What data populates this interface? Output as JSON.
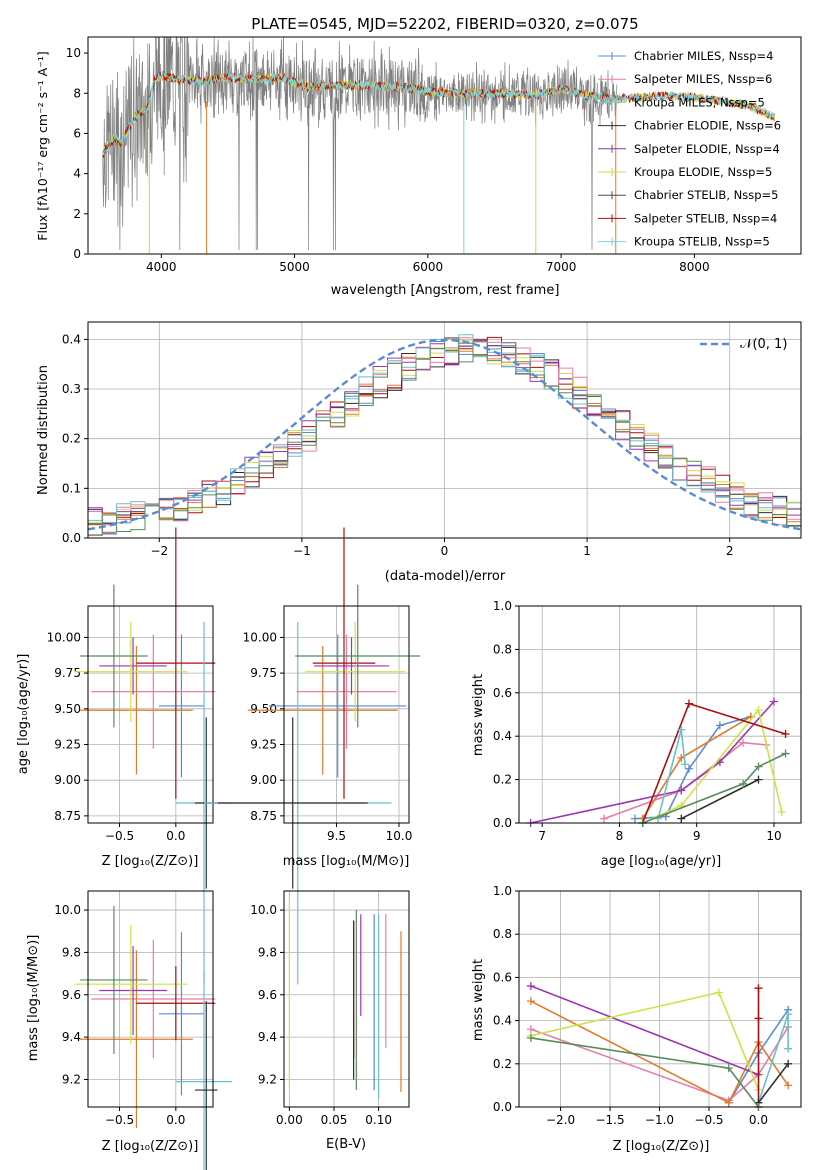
{
  "figure": {
    "title": "PLATE=0545, MJD=52202, FIBERID=0320, z=0.075"
  },
  "colors": {
    "model_line": "#808080",
    "series": [
      "#5b8bd0",
      "#e77ea8",
      "#8fc1c8",
      "#2f2f2f",
      "#7a3fa0",
      "#c8dc3a",
      "#4a4a4a",
      "#a80f0f",
      "#7bd3e6"
    ],
    "hist": [
      "#5b8bd0",
      "#e07b29",
      "#a80f0f",
      "#2e2e2e",
      "#9c36b5",
      "#cfe247",
      "#e77ea8",
      "#6bbfcf",
      "#5b8a5e"
    ]
  },
  "chart_data": [
    {
      "id": "spectrum",
      "type": "line",
      "xlabel": "wavelength [Angstrom, rest frame]",
      "ylabel": "Flux [fλ10⁻¹⁷ erg cm⁻² s⁻¹ A⁻¹]",
      "xlim": [
        3450,
        8800
      ],
      "ylim": [
        0,
        10.8
      ],
      "xticks": [
        4000,
        5000,
        6000,
        7000,
        8000
      ],
      "yticks": [
        0,
        2,
        4,
        6,
        8,
        10
      ],
      "continuum": [
        [
          3560,
          5.0
        ],
        [
          3650,
          5.8
        ],
        [
          3700,
          5.5
        ],
        [
          3800,
          6.8
        ],
        [
          3900,
          7.3
        ],
        [
          3950,
          8.7
        ],
        [
          4000,
          8.9
        ],
        [
          4100,
          8.7
        ],
        [
          4300,
          8.6
        ],
        [
          4500,
          8.8
        ],
        [
          4700,
          8.7
        ],
        [
          4900,
          8.8
        ],
        [
          5100,
          8.3
        ],
        [
          5300,
          8.4
        ],
        [
          5500,
          8.4
        ],
        [
          5800,
          8.3
        ],
        [
          6000,
          8.1
        ],
        [
          6200,
          8.0
        ],
        [
          6400,
          8.0
        ],
        [
          6600,
          8.0
        ],
        [
          6800,
          7.9
        ],
        [
          7000,
          8.2
        ],
        [
          7200,
          7.9
        ],
        [
          7400,
          7.7
        ],
        [
          7600,
          7.8
        ],
        [
          7800,
          7.9
        ],
        [
          8000,
          7.8
        ],
        [
          8200,
          7.6
        ],
        [
          8400,
          7.4
        ],
        [
          8600,
          6.8
        ]
      ],
      "legend": [
        "Chabrier MILES, N_SSP=4",
        "Salpeter MILES, N_SSP=6",
        "Kroupa MILES, N_SSP=5",
        "Chabrier ELODIE, N_SSP=6",
        "Salpeter ELODIE, N_SSP=4",
        "Kroupa ELODIE, N_SSP=5",
        "Chabrier STELIB, N_SSP=5",
        "Salpeter STELIB, N_SSP=4",
        "Kroupa STELIB, N_SSP=5"
      ]
    },
    {
      "id": "residuals",
      "type": "histogram",
      "xlabel": "(data-model)/error",
      "ylabel": "Normed distribution",
      "xlim": [
        -2.5,
        2.5
      ],
      "ylim": [
        0,
        0.435
      ],
      "xticks": [
        -2,
        -1,
        0,
        1,
        2
      ],
      "yticks": [
        0.0,
        0.1,
        0.2,
        0.3,
        0.4
      ],
      "bin_width": 0.1,
      "legend": "𝒩(0, 1)"
    }
  ],
  "panels": {
    "age_Z": {
      "xlabel": "Z [log₁₀(Z/Z⊙)]",
      "ylabel": "age  [log₁₀(age/yr)]",
      "xticks": [
        "-0.5",
        "0.0"
      ],
      "yticks": [
        "8.75",
        "9.00",
        "9.25",
        "9.50",
        "9.75",
        "10.00"
      ]
    },
    "age_mass": {
      "xlabel": "mass [log₁₀(M/M⊙)]",
      "xticks": [
        "9.5",
        "10.0"
      ],
      "yticks": [
        "8.75",
        "9.00",
        "9.25",
        "9.50",
        "9.75",
        "10.00"
      ]
    },
    "weight_age": {
      "xlabel": "age  [log₁₀(age/yr)]",
      "ylabel": "mass weight",
      "xticks": [
        "7",
        "8",
        "9",
        "10"
      ],
      "yticks": [
        "0.0",
        "0.2",
        "0.4",
        "0.6",
        "0.8",
        "1.0"
      ]
    },
    "mass_Z": {
      "xlabel": "Z [log₁₀(Z/Z⊙)]",
      "ylabel": "mass [log₁₀(M/M⊙)]",
      "xticks": [
        "-0.5",
        "0.0"
      ],
      "yticks": [
        "9.2",
        "9.4",
        "9.6",
        "9.8",
        "10.0"
      ]
    },
    "mass_EBV": {
      "xlabel": "E(B-V)",
      "xticks": [
        "0.00",
        "0.05",
        "0.10"
      ],
      "yticks": [
        "9.2",
        "9.4",
        "9.6",
        "9.8",
        "10.0"
      ]
    },
    "weight_Z": {
      "xlabel": "Z [log₁₀(Z/Z⊙)]",
      "ylabel": "mass weight",
      "xticks": [
        "-2.0",
        "-1.5",
        "-1.0",
        "-0.5",
        "0.0"
      ],
      "yticks": [
        "0.0",
        "0.2",
        "0.4",
        "0.6",
        "0.8",
        "1.0"
      ]
    }
  },
  "models": [
    {
      "name": "Chabrier MILES",
      "color": "#5b8bd0",
      "Z": 0.05,
      "Zerr": 0.2,
      "age": 9.52,
      "ageErr": 0.5,
      "mass": 9.51,
      "massErr": 0.55,
      "ebv": 0.095,
      "ebvLo": 9.15,
      "ebvHi": 9.98,
      "ages": [
        8.2,
        8.6,
        8.9,
        9.3,
        9.7
      ],
      "wts": [
        0.02,
        0.03,
        0.25,
        0.45,
        0.49
      ],
      "Zs": [
        -0.3,
        0.0,
        0.3
      ],
      "wz": [
        0.02,
        0.25,
        0.45
      ]
    },
    {
      "name": "Salpeter MILES",
      "color": "#e77ea8",
      "Z": -0.2,
      "Zerr": 0.55,
      "age": 9.62,
      "ageErr": 0.4,
      "mass": 9.58,
      "massErr": 0.4,
      "ebv": 0.108,
      "ebvLo": 9.35,
      "ebvHi": 9.98,
      "ages": [
        7.8,
        8.8,
        9.6,
        9.9
      ],
      "wts": [
        0.02,
        0.15,
        0.37,
        0.36
      ],
      "Zs": [
        -2.3,
        -0.3,
        0.0,
        0.3
      ],
      "wz": [
        0.36,
        0.03,
        0.15,
        0.37
      ]
    },
    {
      "name": "Kroupa MILES",
      "color": "#e07b29",
      "Z": -0.35,
      "Zerr": 0.5,
      "age": 9.49,
      "ageErr": 0.45,
      "mass": 9.39,
      "massErr": 0.6,
      "ebv": 0.125,
      "ebvLo": 9.14,
      "ebvHi": 9.9,
      "ages": [
        8.3,
        8.8,
        9.7
      ],
      "wts": [
        0.02,
        0.3,
        0.49
      ],
      "Zs": [
        -2.3,
        -0.3,
        0.0,
        0.3
      ],
      "wz": [
        0.49,
        0.02,
        0.3,
        0.1
      ]
    },
    {
      "name": "Salpeter ELODIE",
      "color": "#9c36b5",
      "Z": -0.38,
      "Zerr": 0.3,
      "age": 9.8,
      "ageErr": 0.2,
      "mass": 9.62,
      "massErr": 0.3,
      "ebv": 0.08,
      "ebvLo": 9.5,
      "ebvHi": 9.98,
      "ages": [
        6.85,
        8.8,
        9.3,
        10.0
      ],
      "wts": [
        0.0,
        0.15,
        0.28,
        0.56
      ],
      "Zs": [
        -2.3,
        0.0
      ],
      "wz": [
        0.56,
        0.15
      ]
    },
    {
      "name": "Kroupa ELODIE",
      "color": "#cfe247",
      "Z": -0.4,
      "Zerr": 0.5,
      "age": 9.76,
      "ageErr": 0.35,
      "mass": 9.65,
      "massErr": 0.4,
      "ebv": 0.0,
      "ebvLo": 9.15,
      "ebvHi": 10.05,
      "ages": [
        8.3,
        8.8,
        9.8,
        10.1
      ],
      "wts": [
        0.0,
        0.08,
        0.52,
        0.05
      ],
      "Zs": [
        -2.3,
        -0.4,
        0.0
      ],
      "wz": [
        0.33,
        0.53,
        0.08
      ]
    },
    {
      "name": "Salpeter STELIB",
      "color": "#a80f0f",
      "Z": 0.0,
      "Zerr": 0.35,
      "age": 9.82,
      "ageErr": 0.95,
      "mass": 9.56,
      "massErr": 0.25,
      "ebv": 0.072,
      "ebvLo": 9.3,
      "ebvHi": 9.95,
      "ages": [
        8.3,
        8.9,
        10.15
      ],
      "wts": [
        0.0,
        0.55,
        0.41
      ],
      "Zs": [
        0.0,
        0.0,
        0.0
      ],
      "wz": [
        0.0,
        0.55,
        0.41
      ]
    },
    {
      "name": "Kroupa STELIB",
      "color": "#6bbfcf",
      "Z": 0.25,
      "Zerr": 0.25,
      "age": 8.84,
      "ageErr": 1.27,
      "mass": 9.19,
      "massErr": 0.75,
      "ebv": 0.1,
      "ebvLo": 9.11,
      "ebvHi": 9.98,
      "ages": [
        8.5,
        8.8,
        8.85
      ],
      "wts": [
        0.02,
        0.43,
        0.27
      ],
      "Zs": [
        0.0,
        0.3,
        0.3
      ],
      "wz": [
        0.02,
        0.43,
        0.27
      ]
    },
    {
      "name": "Chabrier ELODIE",
      "color": "#2e2e2e",
      "Z": 0.27,
      "Zerr": 0.1,
      "age": 8.84,
      "ageErr": 0.6,
      "mass": 9.15,
      "massErr": 0.6,
      "ebv": 0.072,
      "ebvLo": 9.2,
      "ebvHi": 9.95,
      "ages": [
        8.8,
        9.8
      ],
      "wts": [
        0.02,
        0.2
      ],
      "Zs": [
        0.0,
        0.3
      ],
      "wz": [
        0.02,
        0.2
      ]
    },
    {
      "name": "Chabrier STELIB",
      "color": "#5b8a5e",
      "Z": -0.55,
      "Zerr": 0.3,
      "age": 9.87,
      "ageErr": 0.5,
      "mass": 9.67,
      "massErr": 0.5,
      "ebv": 0.075,
      "ebvLo": 9.15,
      "ebvHi": 10.0,
      "ages": [
        8.3,
        9.6,
        9.8,
        10.15
      ],
      "wts": [
        0.0,
        0.18,
        0.26,
        0.32
      ],
      "Zs": [
        -2.3,
        -0.3,
        0.0
      ],
      "wz": [
        0.32,
        0.18,
        0.0
      ]
    }
  ]
}
